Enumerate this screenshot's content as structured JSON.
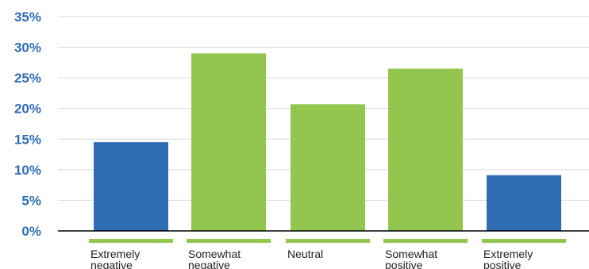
{
  "chart_data": {
    "type": "bar",
    "title": "",
    "xlabel": "",
    "ylabel": "",
    "categories": [
      [
        "Extremely",
        "negative"
      ],
      [
        "Somewhat",
        "negative"
      ],
      [
        "Neutral"
      ],
      [
        "Somewhat",
        "positive"
      ],
      [
        "Extremely",
        "positive"
      ]
    ],
    "values": [
      14.5,
      29.0,
      20.7,
      26.5,
      9.1
    ],
    "bar_colors": [
      "#2f6db3",
      "#92c64f",
      "#92c64f",
      "#92c64f",
      "#2f6db3"
    ],
    "underline_color": "#92c64f",
    "ylim": [
      0,
      35
    ],
    "yticks": [
      0,
      5,
      10,
      15,
      20,
      25,
      30,
      35
    ],
    "ytick_labels": [
      "0%",
      "5%",
      "10%",
      "15%",
      "20%",
      "25%",
      "30%",
      "35%"
    ],
    "ytick_color": "#2f6db3",
    "grid": true,
    "legend": "none"
  }
}
